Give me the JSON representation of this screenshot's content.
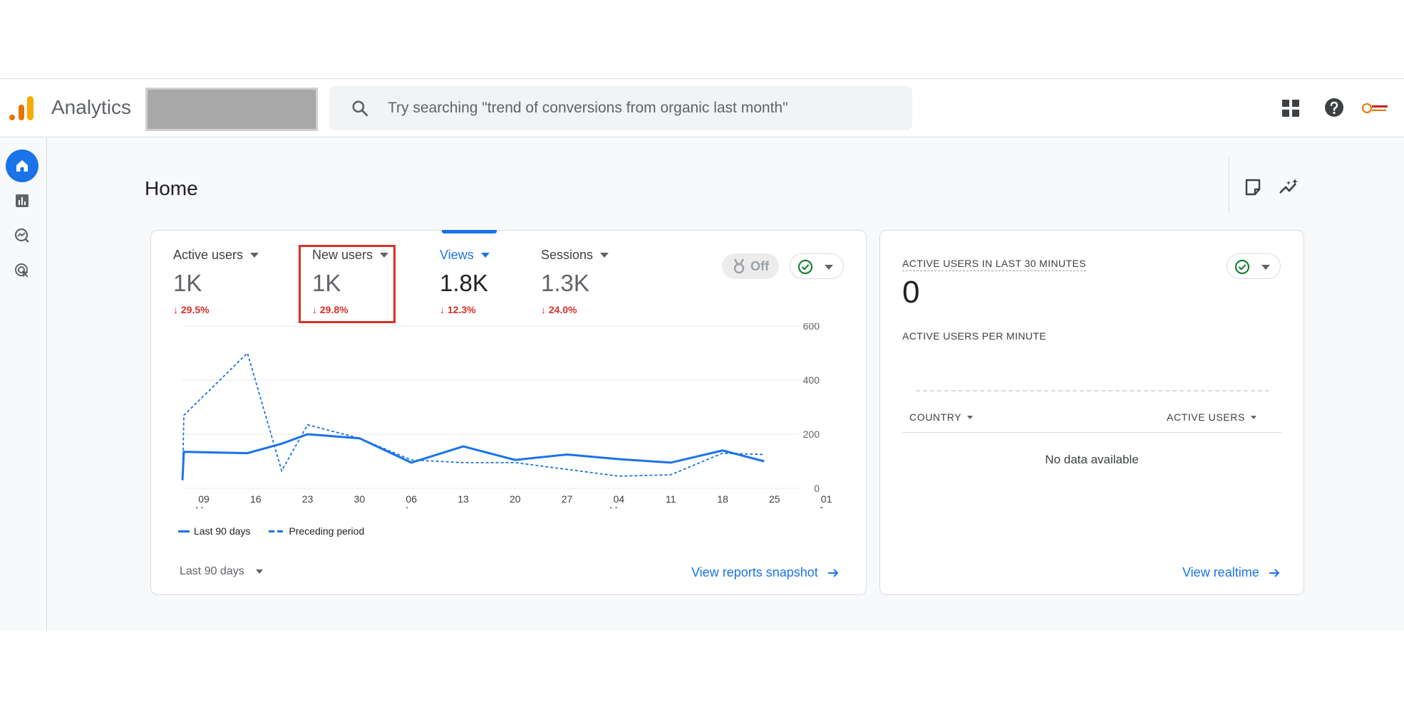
{
  "header": {
    "app_title": "Analytics",
    "search_placeholder": "Try searching \"trend of conversions from organic last month\""
  },
  "sidenav": {
    "items": [
      {
        "name": "home",
        "active": true
      },
      {
        "name": "reports"
      },
      {
        "name": "explore"
      },
      {
        "name": "advertising"
      }
    ]
  },
  "page": {
    "title": "Home"
  },
  "metrics": [
    {
      "label": "Active users",
      "value": "1K",
      "delta": "29.5%"
    },
    {
      "label": "New users",
      "value": "1K",
      "delta": "29.8%"
    },
    {
      "label": "Views",
      "value": "1.8K",
      "delta": "12.3%"
    },
    {
      "label": "Sessions",
      "value": "1.3K",
      "delta": "24.0%"
    }
  ],
  "toggle": {
    "label": "Off"
  },
  "chart_data": {
    "type": "line",
    "x_ticks": [
      {
        "day": "09",
        "month": "Mar"
      },
      {
        "day": "16",
        "month": ""
      },
      {
        "day": "23",
        "month": ""
      },
      {
        "day": "30",
        "month": ""
      },
      {
        "day": "06",
        "month": "Apr"
      },
      {
        "day": "13",
        "month": ""
      },
      {
        "day": "20",
        "month": ""
      },
      {
        "day": "27",
        "month": ""
      },
      {
        "day": "04",
        "month": "May"
      },
      {
        "day": "11",
        "month": ""
      },
      {
        "day": "18",
        "month": ""
      },
      {
        "day": "25",
        "month": ""
      },
      {
        "day": "01",
        "month": "Jun"
      }
    ],
    "y_ticks": [
      "600",
      "400",
      "200",
      "0"
    ],
    "ylim": [
      0,
      600
    ],
    "series": [
      {
        "name": "Last 90 days",
        "style": "solid",
        "points": [
          [
            -1,
            30
          ],
          [
            -0.84,
            135
          ],
          [
            0.84,
            130
          ],
          [
            1.5,
            165
          ],
          [
            2,
            200
          ],
          [
            3,
            185
          ],
          [
            4,
            95
          ],
          [
            5,
            155
          ],
          [
            6,
            105
          ],
          [
            7,
            125
          ],
          [
            8,
            108
          ],
          [
            9,
            95
          ],
          [
            10,
            140
          ],
          [
            10.8,
            100
          ]
        ]
      },
      {
        "name": "Preceding period",
        "style": "dashed",
        "points": [
          [
            -1,
            30
          ],
          [
            -0.84,
            270
          ],
          [
            0.84,
            500
          ],
          [
            1.5,
            65
          ],
          [
            2,
            235
          ],
          [
            3,
            185
          ],
          [
            4,
            105
          ],
          [
            5,
            95
          ],
          [
            6,
            95
          ],
          [
            7,
            70
          ],
          [
            8,
            45
          ],
          [
            9,
            50
          ],
          [
            10,
            130
          ],
          [
            10.8,
            125
          ]
        ]
      }
    ],
    "color": "#1a73e8"
  },
  "range_selector": {
    "label": "Last 90 days"
  },
  "links": {
    "reports_snapshot": "View reports snapshot",
    "realtime": "View realtime"
  },
  "realtime": {
    "title": "ACTIVE USERS IN LAST 30 MINUTES",
    "value": "0",
    "subtitle": "ACTIVE USERS PER MINUTE",
    "col_country": "COUNTRY",
    "col_active": "ACTIVE USERS",
    "empty": "No data available"
  }
}
